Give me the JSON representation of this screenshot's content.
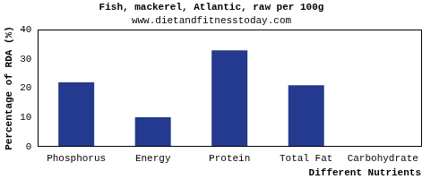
{
  "chart_data": {
    "type": "bar",
    "title": "Fish, mackerel, Atlantic, raw per 100g",
    "subtitle": "www.dietandfitnesstoday.com",
    "x_label": "Different Nutrients",
    "y_label": "Percentage of RDA (%)",
    "categories": [
      "Phosphorus",
      "Energy",
      "Protein",
      "Total Fat",
      "Carbohydrate"
    ],
    "values": [
      22,
      10,
      33,
      21,
      0
    ],
    "color": "#233a8f",
    "ylim": [
      0,
      40
    ],
    "yticks": [
      0,
      10,
      20,
      30,
      40
    ],
    "grid": false
  }
}
